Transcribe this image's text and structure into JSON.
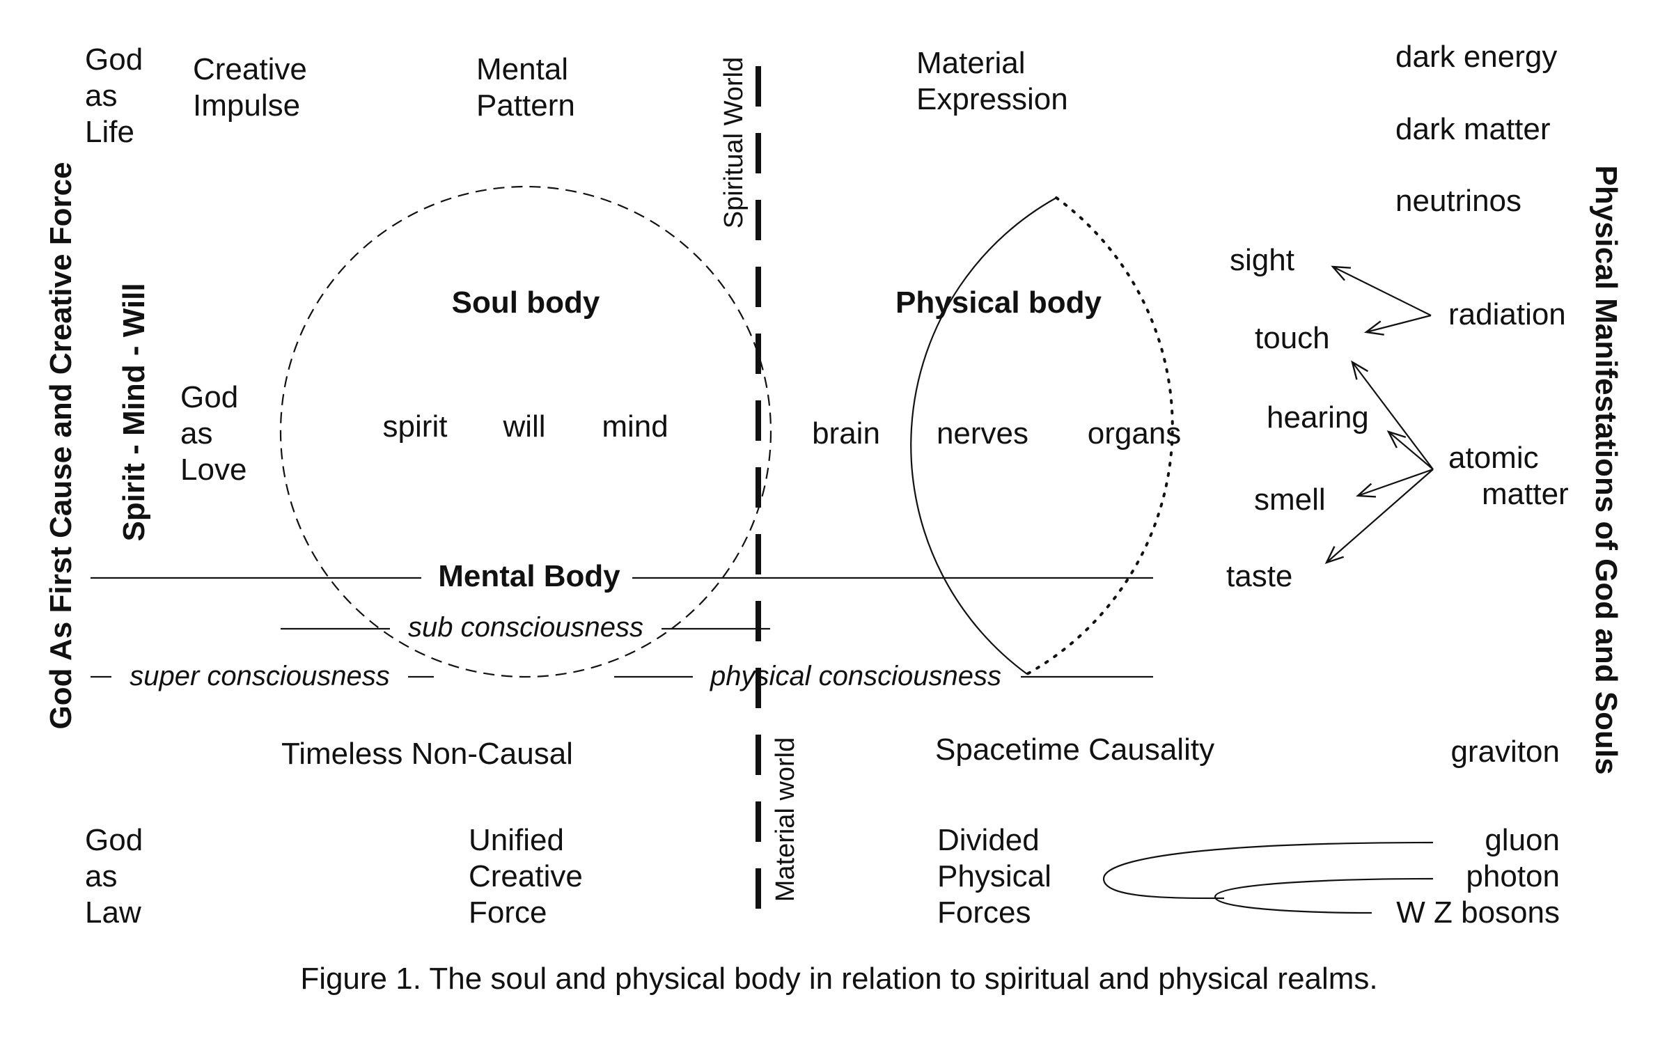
{
  "left_side": {
    "outer": "God   As   First   Cause   and   Creative   Force",
    "inner": "Spirit  -  Mind  -  Will"
  },
  "right_side": "Physical   Manifestations   of   God   and   Souls",
  "top_row": {
    "god_life": [
      "God",
      "as",
      "Life"
    ],
    "creative_impulse": [
      "Creative",
      "Impulse"
    ],
    "mental_pattern": [
      "Mental",
      "Pattern"
    ],
    "material_expression": [
      "Material",
      "Expression"
    ]
  },
  "realms": {
    "spiritual": "Spiritual World",
    "material": "Material world"
  },
  "cosmic": [
    "dark energy",
    "dark matter",
    "neutrinos"
  ],
  "god_love": [
    "God",
    "as",
    "Love"
  ],
  "soul_body": {
    "title": "Soul body",
    "items": [
      "spirit",
      "will",
      "mind"
    ]
  },
  "physical_body": {
    "title": "Physical body",
    "items": [
      "brain",
      "nerves",
      "organs"
    ]
  },
  "senses": [
    "sight",
    "touch",
    "hearing",
    "smell",
    "taste"
  ],
  "sources": {
    "radiation": "radiation",
    "atomic": [
      "atomic",
      "matter"
    ]
  },
  "levels": {
    "mental_body": "Mental Body",
    "sub": "sub consciousness",
    "super": "super consciousness",
    "physical": "physical consciousness"
  },
  "bottom": {
    "timeless": "Timeless Non-Causal",
    "spacetime": "Spacetime Causality",
    "graviton": "graviton",
    "god_law": [
      "God",
      "as",
      "Law"
    ],
    "unified": [
      "Unified",
      "Creative",
      "Force"
    ],
    "divided": [
      "Divided",
      "Physical",
      "Forces"
    ],
    "bosons": [
      "gluon",
      "photon",
      "W Z bosons"
    ]
  },
  "caption": "Figure 1. The soul and physical body in relation to spiritual and physical realms."
}
